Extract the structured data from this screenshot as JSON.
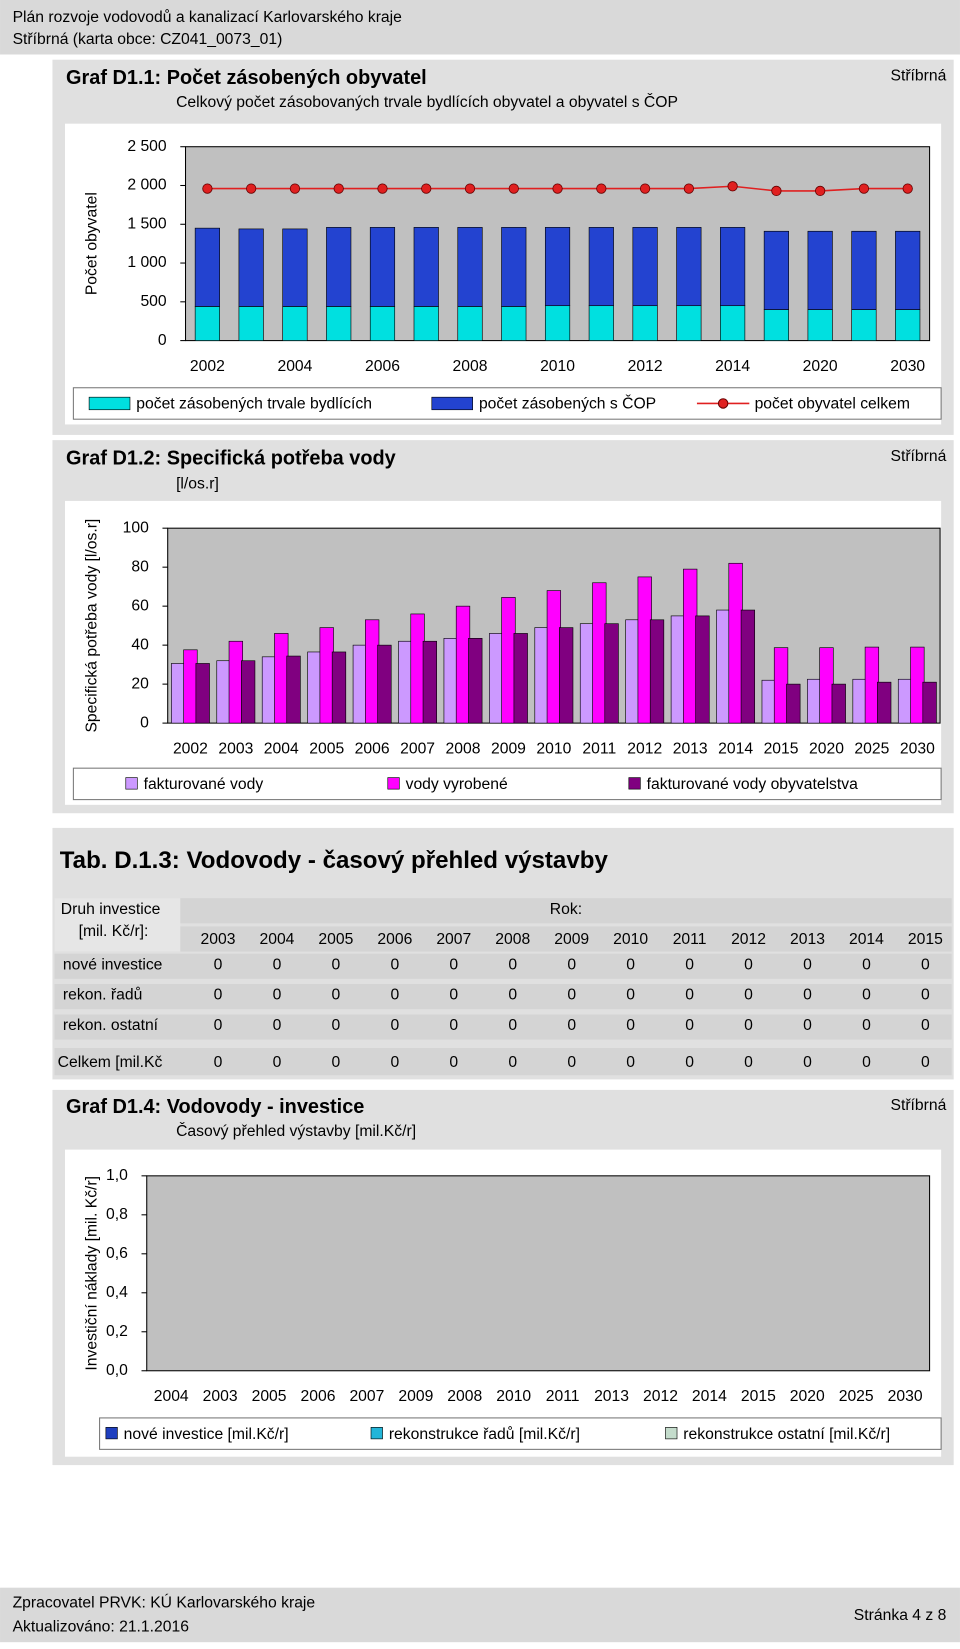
{
  "header": {
    "title": "Plán rozvoje vodovodů a kanalizací Karlovarského kraje",
    "subtitle": "Stříbrná (karta obce: CZ041_0073_01)"
  },
  "chart_data": [
    {
      "type": "bar",
      "stacked": true,
      "grid": false,
      "title": "Graf D1.1: Počet zásobených obyvatel",
      "subtitle": "Celkový počet zásobovaných trvale bydlících obyvatel a obyvatel s ČOP",
      "label": "Stříbrná",
      "ylabel": "Počet obyvatel",
      "categories": [
        "2002",
        null,
        "2004",
        null,
        "2006",
        null,
        "2008",
        null,
        "2010",
        null,
        "2012",
        null,
        "2014",
        null,
        "2020",
        null,
        "2030"
      ],
      "ylim": [
        0,
        2500
      ],
      "yticks": [
        0,
        500,
        {
          "value": 1000,
          "label": "1 000"
        },
        {
          "value": 1500,
          "label": "1 500"
        },
        {
          "value": 2000,
          "label": "2 000"
        },
        {
          "value": 2500,
          "label": "2 500"
        }
      ],
      "series": [
        {
          "name": "počet zásobených trvale bydlících",
          "color": "#00e0e0",
          "values": [
            440,
            440,
            440,
            440,
            440,
            440,
            440,
            440,
            450,
            450,
            450,
            450,
            450,
            400,
            400,
            400,
            400
          ]
        },
        {
          "name": "počet zásobených s ČOP",
          "color": "#2343d0",
          "values": [
            1010,
            1000,
            1000,
            1020,
            1020,
            1020,
            1020,
            1020,
            1010,
            1010,
            1010,
            1010,
            1010,
            1010,
            1010,
            1010,
            1010
          ]
        },
        {
          "name": "počet obyvatel celkem",
          "color": "#e02020",
          "type": "line",
          "values": [
            1960,
            1960,
            1960,
            1960,
            1960,
            1960,
            1960,
            1960,
            1960,
            1960,
            1960,
            1960,
            1990,
            1930,
            1930,
            1960,
            1960
          ]
        }
      ]
    },
    {
      "type": "bar",
      "grid": false,
      "title": "Graf D1.2: Specifická potřeba vody",
      "subtitle": "[l/os.r]",
      "label": "Stříbrná",
      "ylabel": "Specifická potřeba vody [l/os.r]",
      "categories": [
        "2002",
        "2003",
        "2004",
        "2005",
        "2006",
        "2007",
        "2008",
        "2009",
        "2010",
        "2011",
        "2012",
        "2013",
        "2014",
        "2015",
        "2020",
        "2025",
        "2030"
      ],
      "ylim": [
        0,
        100
      ],
      "yticks": [
        0,
        20,
        40,
        60,
        80,
        100
      ],
      "series": [
        {
          "name": "fakturované vody",
          "color": "#cc99ff",
          "values": [
            30.6,
            32,
            34,
            36.5,
            40,
            42,
            43.5,
            46,
            49,
            51,
            53,
            55,
            58,
            22,
            22.5,
            22.5,
            22.5
          ]
        },
        {
          "name": "vody vyrobené",
          "color": "#ff00ff",
          "values": [
            37.6,
            42,
            46,
            49,
            53,
            56,
            60,
            64.5,
            68,
            72,
            75,
            79,
            82,
            38.7,
            38.7,
            39,
            39
          ]
        },
        {
          "name": "fakturované vody obyvatelstva",
          "color": "#800080",
          "values": [
            30.6,
            32,
            34.4,
            36.5,
            40,
            42,
            43.5,
            46,
            49,
            51,
            53,
            55,
            58,
            20,
            20,
            21,
            21
          ]
        }
      ]
    },
    {
      "type": "bar",
      "grid": false,
      "title": "Graf D1.4: Vodovody - investice",
      "subtitle": "Časový přehled výstavby [mil.Kč/r]",
      "label": "Stříbrná",
      "ylabel": "Investiční náklady [mil. Kč/r]",
      "categories": [
        "2004",
        "2003",
        "2005",
        "2006",
        "2007",
        "2009",
        "2008",
        "2010",
        "2011",
        "2013",
        "2012",
        "2014",
        "2015",
        "2020",
        "2025",
        "2030"
      ],
      "ylim": [
        0,
        1
      ],
      "yticks": [
        {
          "value": 0,
          "label": "0,0"
        },
        {
          "value": 0.2,
          "label": "0,2"
        },
        {
          "value": 0.4,
          "label": "0,4"
        },
        {
          "value": 0.6,
          "label": "0,6"
        },
        {
          "value": 0.8,
          "label": "0,8"
        },
        {
          "value": 1,
          "label": "1,0"
        }
      ],
      "series": [
        {
          "name": "nové investice [mil.Kč/r]",
          "color": "#1f3fbf",
          "values": [
            0,
            0,
            0,
            0,
            0,
            0,
            0,
            0,
            0,
            0,
            0,
            0,
            0,
            0,
            0,
            0
          ]
        },
        {
          "name": "rekonstrukce řadů [mil.Kč/r]",
          "color": "#22b5d8",
          "values": [
            0,
            0,
            0,
            0,
            0,
            0,
            0,
            0,
            0,
            0,
            0,
            0,
            0,
            0,
            0,
            0
          ]
        },
        {
          "name": "rekonstrukce ostatní [mil.Kč/r]",
          "color": "#c4dccc",
          "values": [
            0,
            0,
            0,
            0,
            0,
            0,
            0,
            0,
            0,
            0,
            0,
            0,
            0,
            0,
            0,
            0
          ]
        }
      ]
    }
  ],
  "table": {
    "title": "Tab. D.1.3: Vodovody - časový přehled výstavby",
    "header": [
      "Druh investice",
      "[mil. Kč/r]:"
    ],
    "year_label": "Rok:",
    "years": [
      "2003",
      "2004",
      "2005",
      "2006",
      "2007",
      "2008",
      "2009",
      "2010",
      "2011",
      "2012",
      "2013",
      "2014",
      "2015"
    ],
    "rows": [
      {
        "label": "nové investice",
        "values": [
          0,
          0,
          0,
          0,
          0,
          0,
          0,
          0,
          0,
          0,
          0,
          0,
          0
        ]
      },
      {
        "label": "rekon. řadů",
        "values": [
          0,
          0,
          0,
          0,
          0,
          0,
          0,
          0,
          0,
          0,
          0,
          0,
          0
        ]
      },
      {
        "label": "rekon. ostatní",
        "values": [
          0,
          0,
          0,
          0,
          0,
          0,
          0,
          0,
          0,
          0,
          0,
          0,
          0
        ]
      }
    ],
    "total": {
      "label": "Celkem [mil.Kč",
      "values": [
        0,
        0,
        0,
        0,
        0,
        0,
        0,
        0,
        0,
        0,
        0,
        0,
        0
      ]
    }
  },
  "footer": {
    "author": "Zpracovatel PRVK: KÚ Karlovarského kraje",
    "updated": "Aktualizováno: 21.1.2016",
    "page": "Stránka 4 z 8"
  }
}
